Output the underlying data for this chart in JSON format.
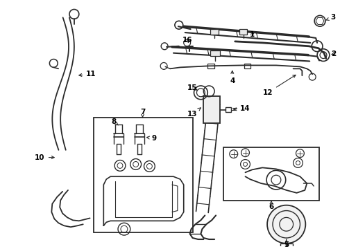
{
  "bg_color": "#ffffff",
  "line_color": "#2a2a2a",
  "figsize": [
    4.9,
    3.6
  ],
  "dpi": 100
}
